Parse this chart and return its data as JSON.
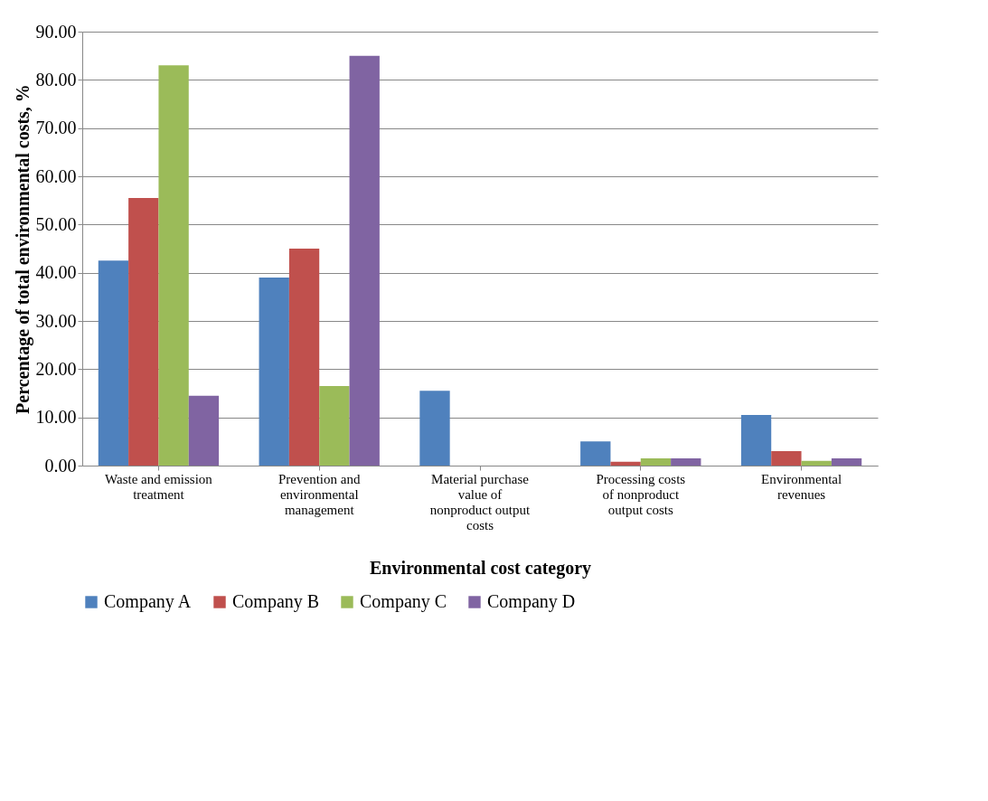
{
  "chart_data": {
    "type": "bar",
    "xlabel": "Environmental cost category",
    "ylabel": "Percentage of total environmental costs, %",
    "categories": [
      "Waste and emission treatment",
      "Prevention and environmental management",
      "Material purchase value of nonproduct output costs",
      "Processing costs of nonproduct output costs",
      "Environmental revenues"
    ],
    "series": [
      {
        "name": "Company A",
        "color": "#4f81bd",
        "values": [
          42.5,
          39,
          15.5,
          5,
          10.5
        ]
      },
      {
        "name": "Company B",
        "color": "#c0504d",
        "values": [
          55.5,
          45,
          0,
          0.8,
          3
        ]
      },
      {
        "name": "Company C",
        "color": "#9bbb59",
        "values": [
          83,
          16.5,
          0,
          1.5,
          1
        ]
      },
      {
        "name": "Company D",
        "color": "#8064a2",
        "values": [
          14.5,
          85,
          0,
          1.5,
          1.5
        ]
      }
    ],
    "ylim": [
      0,
      90
    ],
    "yticks": [
      {
        "value": 0,
        "label": "0.00"
      },
      {
        "value": 10,
        "label": "10.00"
      },
      {
        "value": 20,
        "label": "20.00"
      },
      {
        "value": 30,
        "label": "30.00"
      },
      {
        "value": 40,
        "label": "40.00"
      },
      {
        "value": 50,
        "label": "50.00"
      },
      {
        "value": 60,
        "label": "60.00"
      },
      {
        "value": 70,
        "label": "70.00"
      },
      {
        "value": 80,
        "label": "80.00"
      },
      {
        "value": 90,
        "label": "90.00"
      }
    ],
    "grid": "y",
    "legend": "bottom"
  }
}
